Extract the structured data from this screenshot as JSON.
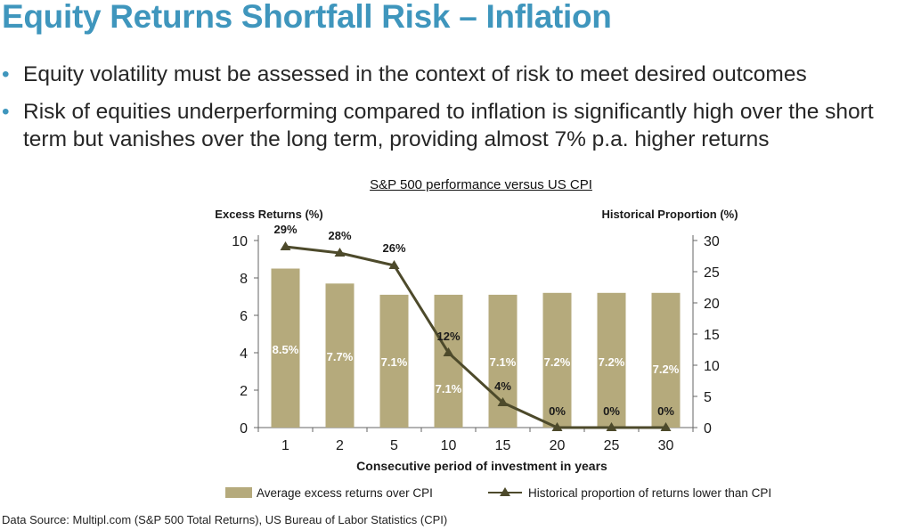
{
  "slide": {
    "title": "Equity Returns Shortfall Risk – Inflation",
    "bullets": [
      "Equity volatility must be assessed in the context of risk to meet desired outcomes",
      "Risk of equities underperforming compared to inflation is significantly high over the short term but vanishes over the long term, providing almost 7% p.a. higher returns"
    ],
    "source": "Data Source: Multipl.com (S&P 500 Total Returns), US Bureau of Labor Statistics (CPI)"
  },
  "colors": {
    "title": "#3f96bd",
    "bar": "#b5aa7c",
    "line": "#4d4a2b",
    "text": "#1a1a1a"
  },
  "chart_data": {
    "type": "bar",
    "title": "S&P 500 performance versus US CPI",
    "xlabel": "Consecutive period of investment in years",
    "ylabel": "Excess Returns (%)",
    "y2label": "Historical Proportion (%)",
    "categories": [
      "1",
      "2",
      "5",
      "10",
      "15",
      "20",
      "25",
      "30"
    ],
    "ylim": [
      0,
      10
    ],
    "yticks": [
      0,
      2,
      4,
      6,
      8,
      10
    ],
    "y2lim": [
      0,
      30
    ],
    "y2ticks": [
      0,
      5,
      10,
      15,
      20,
      25,
      30
    ],
    "series": [
      {
        "name": "Average excess returns over CPI",
        "type": "bar",
        "axis": "left",
        "values": [
          8.5,
          7.7,
          7.1,
          7.1,
          7.1,
          7.2,
          7.2,
          7.2
        ],
        "labels": [
          "8.5%",
          "7.7%",
          "7.1%",
          "7.1%",
          "7.1%",
          "7.2%",
          "7.2%",
          "7.2%"
        ]
      },
      {
        "name": "Historical proportion of returns lower than CPI",
        "type": "line",
        "axis": "right",
        "values": [
          29,
          28,
          26,
          12,
          4,
          0,
          0,
          0
        ],
        "labels": [
          "29%",
          "28%",
          "26%",
          "12%",
          "4%",
          "0%",
          "0%",
          "0%"
        ]
      }
    ],
    "legend": "bottom"
  }
}
